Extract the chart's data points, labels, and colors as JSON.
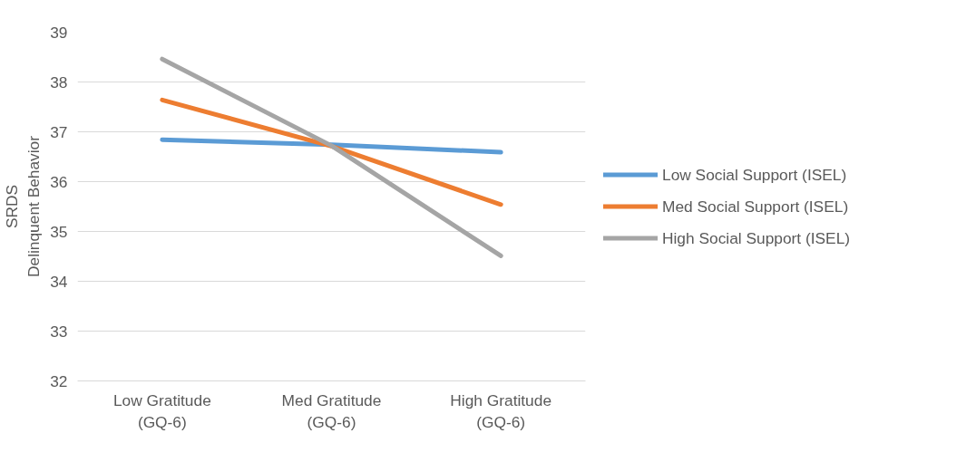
{
  "chart_data": {
    "type": "line",
    "ylabel": "SRDS\nDelinquent Behavior",
    "categories": [
      "Low Gratitude\n(GQ-6)",
      "Med Gratitude\n(GQ-6)",
      "High Gratitude\n(GQ-6)"
    ],
    "series": [
      {
        "name": "Low Social Support (ISEL)",
        "color": "#5b9bd5",
        "values": [
          36.84,
          36.74,
          36.59
        ]
      },
      {
        "name": "Med Social Support (ISEL)",
        "color": "#ed7d31",
        "values": [
          37.64,
          36.71,
          35.54
        ]
      },
      {
        "name": "High Social Support (ISEL)",
        "color": "#a5a5a5",
        "values": [
          38.46,
          36.72,
          34.51
        ]
      }
    ],
    "ylim": [
      32,
      39
    ],
    "yticks": [
      32,
      33,
      34,
      35,
      36,
      37,
      38,
      39
    ],
    "grid": "y",
    "legend": "right",
    "marker": "none",
    "line_style": "solid"
  }
}
